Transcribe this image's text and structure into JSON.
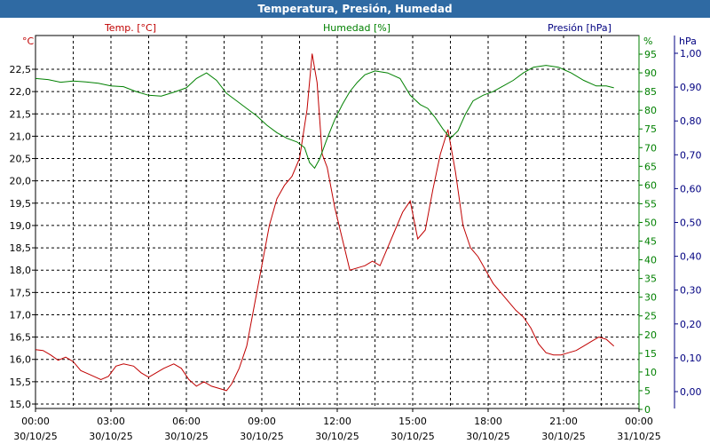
{
  "window": {
    "title": "Temperatura, Presión, Humedad"
  },
  "chart_data": {
    "type": "line",
    "title": "Temperatura, Presión, Humedad",
    "x_unit": "hours since 30/10/25 00:00",
    "x_range": [
      0,
      24
    ],
    "x_tick_labels": [
      [
        "00:00",
        "30/10/25"
      ],
      [
        "03:00",
        "30/10/25"
      ],
      [
        "06:00",
        "30/10/25"
      ],
      [
        "09:00",
        "30/10/25"
      ],
      [
        "12:00",
        "30/10/25"
      ],
      [
        "15:00",
        "30/10/25"
      ],
      [
        "18:00",
        "30/10/25"
      ],
      [
        "21:00",
        "30/10/25"
      ],
      [
        "00:00",
        "31/10/25"
      ]
    ],
    "grid": true,
    "axes": {
      "temp": {
        "unit_label": "°C",
        "legend": "Temp. [°C]",
        "color": "#c00000",
        "range": [
          15.0,
          22.5
        ],
        "ticks": [
          "15,0",
          "15,5",
          "16,0",
          "16,5",
          "17,0",
          "17,5",
          "18,0",
          "18,5",
          "19,0",
          "19,5",
          "20,0",
          "20,5",
          "21,0",
          "21,5",
          "22,0",
          "22,5"
        ]
      },
      "hum": {
        "unit_label": "%",
        "legend": "Humedad [%]",
        "color": "#008000",
        "range": [
          0,
          95
        ],
        "ticks": [
          "0",
          "5",
          "10",
          "15",
          "20",
          "25",
          "30",
          "35",
          "40",
          "45",
          "50",
          "55",
          "60",
          "65",
          "70",
          "75",
          "80",
          "85",
          "90",
          "95"
        ]
      },
      "pres": {
        "unit_label": "hPa",
        "legend": "Presión [hPa]",
        "color": "#000080",
        "range": [
          0,
          1.0
        ],
        "ticks": [
          "0,00",
          "0,10",
          "0,20",
          "0,30",
          "0,40",
          "0,50",
          "0,60",
          "0,70",
          "0,80",
          "0,90",
          "1,00"
        ]
      }
    },
    "series": [
      {
        "name": "Temp. [°C]",
        "axis": "temp",
        "color": "#c00000",
        "points": [
          [
            0.0,
            16.22
          ],
          [
            0.3,
            16.2
          ],
          [
            0.6,
            16.1
          ],
          [
            0.9,
            15.98
          ],
          [
            1.2,
            16.05
          ],
          [
            1.5,
            15.95
          ],
          [
            1.8,
            15.75
          ],
          [
            2.2,
            15.65
          ],
          [
            2.6,
            15.55
          ],
          [
            2.9,
            15.62
          ],
          [
            3.2,
            15.85
          ],
          [
            3.5,
            15.9
          ],
          [
            3.9,
            15.85
          ],
          [
            4.2,
            15.7
          ],
          [
            4.5,
            15.6
          ],
          [
            4.8,
            15.7
          ],
          [
            5.1,
            15.8
          ],
          [
            5.5,
            15.9
          ],
          [
            5.8,
            15.8
          ],
          [
            6.1,
            15.55
          ],
          [
            6.4,
            15.4
          ],
          [
            6.7,
            15.5
          ],
          [
            7.0,
            15.4
          ],
          [
            7.3,
            15.35
          ],
          [
            7.6,
            15.3
          ],
          [
            7.8,
            15.45
          ],
          [
            8.1,
            15.8
          ],
          [
            8.4,
            16.3
          ],
          [
            8.7,
            17.2
          ],
          [
            9.0,
            18.1
          ],
          [
            9.3,
            19.0
          ],
          [
            9.6,
            19.6
          ],
          [
            9.9,
            19.9
          ],
          [
            10.2,
            20.1
          ],
          [
            10.5,
            20.5
          ],
          [
            10.8,
            21.6
          ],
          [
            11.0,
            22.85
          ],
          [
            11.2,
            22.2
          ],
          [
            11.4,
            20.6
          ],
          [
            11.6,
            20.3
          ],
          [
            11.9,
            19.4
          ],
          [
            12.2,
            18.7
          ],
          [
            12.5,
            18.0
          ],
          [
            12.8,
            18.05
          ],
          [
            13.1,
            18.1
          ],
          [
            13.4,
            18.2
          ],
          [
            13.7,
            18.1
          ],
          [
            14.0,
            18.5
          ],
          [
            14.3,
            18.9
          ],
          [
            14.6,
            19.3
          ],
          [
            14.9,
            19.55
          ],
          [
            15.2,
            18.7
          ],
          [
            15.5,
            18.9
          ],
          [
            15.8,
            19.8
          ],
          [
            16.1,
            20.6
          ],
          [
            16.4,
            21.15
          ],
          [
            16.7,
            20.2
          ],
          [
            17.0,
            19.0
          ],
          [
            17.3,
            18.5
          ],
          [
            17.6,
            18.3
          ],
          [
            17.9,
            18.0
          ],
          [
            18.2,
            17.7
          ],
          [
            18.5,
            17.5
          ],
          [
            18.8,
            17.3
          ],
          [
            19.1,
            17.1
          ],
          [
            19.4,
            16.95
          ],
          [
            19.7,
            16.7
          ],
          [
            20.0,
            16.35
          ],
          [
            20.3,
            16.15
          ],
          [
            20.6,
            16.1
          ],
          [
            20.9,
            16.1
          ],
          [
            21.2,
            16.15
          ],
          [
            21.5,
            16.2
          ],
          [
            21.8,
            16.3
          ],
          [
            22.1,
            16.4
          ],
          [
            22.4,
            16.5
          ],
          [
            22.7,
            16.45
          ],
          [
            23.0,
            16.3
          ]
        ]
      },
      {
        "name": "Humedad [%]",
        "axis": "hum",
        "color": "#008000",
        "points": [
          [
            0.0,
            88.5
          ],
          [
            0.5,
            88.2
          ],
          [
            1.0,
            87.5
          ],
          [
            1.5,
            87.8
          ],
          [
            2.0,
            87.6
          ],
          [
            2.5,
            87.2
          ],
          [
            3.0,
            86.5
          ],
          [
            3.5,
            86.3
          ],
          [
            4.0,
            85.0
          ],
          [
            4.5,
            84.0
          ],
          [
            5.0,
            83.8
          ],
          [
            5.5,
            84.8
          ],
          [
            6.0,
            86.0
          ],
          [
            6.4,
            88.5
          ],
          [
            6.8,
            90.0
          ],
          [
            7.2,
            88.0
          ],
          [
            7.6,
            84.5
          ],
          [
            8.0,
            82.5
          ],
          [
            8.4,
            80.5
          ],
          [
            8.8,
            78.5
          ],
          [
            9.2,
            76.0
          ],
          [
            9.6,
            74.0
          ],
          [
            10.0,
            72.5
          ],
          [
            10.4,
            71.5
          ],
          [
            10.7,
            70.0
          ],
          [
            10.9,
            66.0
          ],
          [
            11.1,
            64.5
          ],
          [
            11.3,
            67.0
          ],
          [
            11.6,
            72.5
          ],
          [
            11.9,
            77.5
          ],
          [
            12.2,
            81.5
          ],
          [
            12.5,
            85.0
          ],
          [
            12.8,
            87.5
          ],
          [
            13.1,
            89.5
          ],
          [
            13.5,
            90.5
          ],
          [
            14.0,
            90.0
          ],
          [
            14.5,
            88.5
          ],
          [
            14.9,
            84.0
          ],
          [
            15.3,
            81.5
          ],
          [
            15.6,
            80.5
          ],
          [
            15.9,
            78.0
          ],
          [
            16.2,
            75.0
          ],
          [
            16.5,
            72.5
          ],
          [
            16.8,
            74.5
          ],
          [
            17.1,
            79.0
          ],
          [
            17.4,
            82.5
          ],
          [
            17.8,
            84.0
          ],
          [
            18.2,
            85.0
          ],
          [
            18.6,
            86.5
          ],
          [
            19.0,
            88.0
          ],
          [
            19.4,
            90.0
          ],
          [
            19.8,
            91.5
          ],
          [
            20.3,
            92.0
          ],
          [
            20.8,
            91.5
          ],
          [
            21.3,
            90.0
          ],
          [
            21.8,
            88.0
          ],
          [
            22.3,
            86.5
          ],
          [
            22.7,
            86.5
          ],
          [
            23.0,
            86.0
          ]
        ]
      }
    ]
  }
}
